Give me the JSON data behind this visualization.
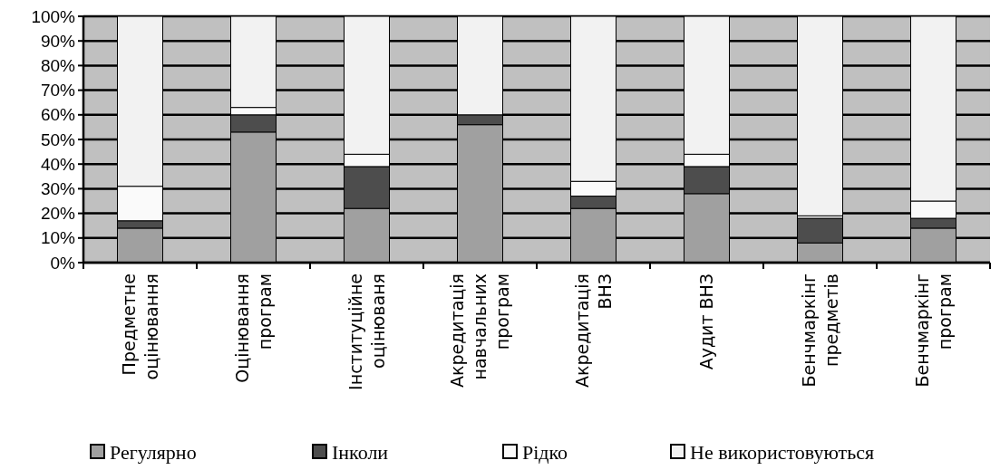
{
  "chart_data": {
    "type": "bar",
    "stacked": true,
    "categories": [
      "Предметне оцінювання",
      "Оцінювання програм",
      "Інституційне оцінюваня",
      "Акредитація навчальних програм",
      "Акредитація ВНЗ",
      "Аудит ВНЗ",
      "Бенчмаркінг предметів",
      "Бенчмаркінг програм"
    ],
    "series": [
      {
        "name": "Регулярно",
        "color": "#a0a0a0",
        "values": [
          14,
          53,
          22,
          56,
          22,
          28,
          8,
          14
        ]
      },
      {
        "name": "Інколи",
        "color": "#4d4d4d",
        "values": [
          3,
          7,
          17,
          4,
          5,
          11,
          10,
          4
        ]
      },
      {
        "name": "Рідко",
        "color": "#fafafa",
        "values": [
          14,
          3,
          5,
          0,
          6,
          5,
          1,
          7
        ]
      },
      {
        "name": "Не використовуються",
        "color": "#f2f2f2",
        "values": [
          69,
          37,
          56,
          40,
          67,
          56,
          81,
          75
        ]
      }
    ],
    "ylim": [
      0,
      100
    ],
    "yticks": [
      {
        "value": 0,
        "label": "0%"
      },
      {
        "value": 10,
        "label": "10%"
      },
      {
        "value": 20,
        "label": "20%"
      },
      {
        "value": 30,
        "label": "30%"
      },
      {
        "value": 40,
        "label": "40%"
      },
      {
        "value": 50,
        "label": "50%"
      },
      {
        "value": 60,
        "label": "60%"
      },
      {
        "value": 70,
        "label": "70%"
      },
      {
        "value": 80,
        "label": "80%"
      },
      {
        "value": 90,
        "label": "90%"
      },
      {
        "value": 100,
        "label": "100%"
      }
    ],
    "grid": "y",
    "legend": "bottom"
  }
}
